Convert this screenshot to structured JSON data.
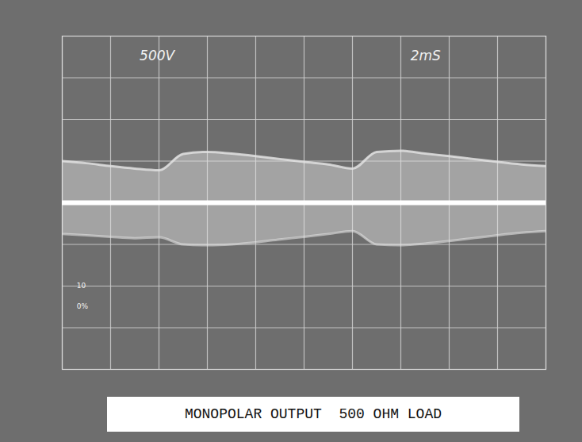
{
  "chart_data": {
    "type": "line",
    "caption": "MONOPOLAR OUTPUT  500 OHM LOAD",
    "annotations": [
      "500V",
      "2mS",
      "10",
      "0%"
    ],
    "x": [
      0,
      1,
      2,
      3,
      4,
      5,
      6,
      7,
      8,
      9,
      10,
      11,
      12,
      13,
      14,
      15,
      16,
      17,
      18,
      19,
      20
    ],
    "series": [
      {
        "type": "area",
        "color": "#e4e4e4",
        "values": [
          500,
          475,
          440,
          410,
          390,
          585,
          610,
          590,
          560,
          525,
          490,
          460,
          410,
          610,
          625,
          590,
          560,
          525,
          490,
          460,
          440
        ],
        "lower": [
          -375,
          -390,
          -410,
          -425,
          -415,
          -500,
          -510,
          -500,
          -475,
          -440,
          -410,
          -375,
          -340,
          -500,
          -510,
          -490,
          -460,
          -425,
          -390,
          -360,
          -340
        ]
      },
      {
        "type": "line",
        "color": "#ffffff",
        "values": [
          0,
          0,
          0,
          0,
          0,
          0,
          0,
          0,
          0,
          0,
          0,
          0,
          0,
          0,
          0,
          0,
          0,
          0,
          0,
          0,
          0
        ]
      }
    ],
    "xlim": [
      0,
      20
    ],
    "xticks": [
      0,
      2,
      4,
      6,
      8,
      10,
      12,
      14,
      16,
      18,
      20
    ],
    "ylim": [
      -2000,
      2000
    ],
    "yticks": [
      -2000,
      -1500,
      -1000,
      -500,
      0,
      500,
      1000,
      1500,
      2000
    ],
    "grid": true,
    "tick_labels": false
  }
}
